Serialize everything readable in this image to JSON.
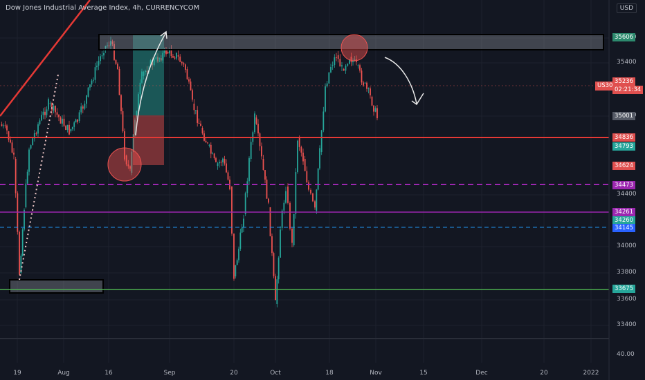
{
  "header": {
    "title": "Dow Jones Industrial Average Index, 4h, CURRENCYCOM",
    "currency": "USD"
  },
  "price_axis": {
    "ticks": [
      "35600",
      "35400",
      "35000",
      "34400",
      "34000",
      "33800",
      "33600",
      "33400"
    ]
  },
  "oscillator": {
    "value_label": "40.00"
  },
  "time_axis": {
    "labels": [
      "19",
      "Aug",
      "16",
      "Sep",
      "20",
      "Oct",
      "18",
      "Nov",
      "15",
      "Dec",
      "20",
      "2022"
    ]
  },
  "price_tags": [
    {
      "name": "price-tag-35606",
      "text": "35606",
      "color": "#2d8a6e"
    },
    {
      "name": "price-tag-35236",
      "text": "35236",
      "color": "#e0504f"
    },
    {
      "name": "price-tag-countdown",
      "text": "02:21:34",
      "color": "#e0504f"
    },
    {
      "name": "price-tag-35001",
      "text": "35001",
      "color": "#555a66"
    },
    {
      "name": "price-tag-34836",
      "text": "34836",
      "color": "#e0504f"
    },
    {
      "name": "price-tag-34793",
      "text": "34793",
      "color": "#26a69a"
    },
    {
      "name": "price-tag-34624",
      "text": "34624",
      "color": "#e0504f"
    },
    {
      "name": "price-tag-34473",
      "text": "34473",
      "color": "#9c27b0"
    },
    {
      "name": "price-tag-34261",
      "text": "34261",
      "color": "#9c27b0"
    },
    {
      "name": "price-tag-34260",
      "text": "34260",
      "color": "#26a69a"
    },
    {
      "name": "price-tag-34145",
      "text": "34145",
      "color": "#2962ff"
    },
    {
      "name": "price-tag-33675",
      "text": "33675",
      "color": "#26a69a"
    }
  ],
  "symbol_tag": {
    "text": "US30"
  },
  "colors": {
    "background": "#131722",
    "up": "#26a69a",
    "down": "#ef5350",
    "resistance_line": "#e53935",
    "support_line": "#4caf50",
    "magenta_dashed": "#9c27b0",
    "blue_dashed": "#2196f3"
  }
}
